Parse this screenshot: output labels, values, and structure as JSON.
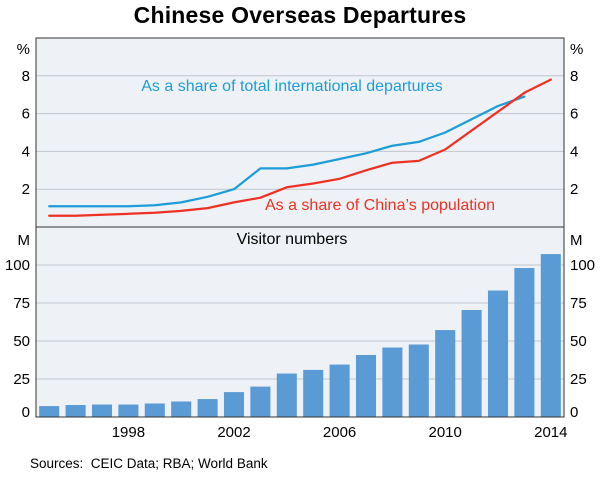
{
  "title": "Chinese Overseas Departures",
  "source_note": "Sources:  CEIC Data; RBA; World Bank",
  "colors": {
    "blue_line": "#1e9cd7",
    "red_line": "#ee3124",
    "bar": "#5b9bd5",
    "plot_bg": "#eef2f6",
    "grid": "#bfc6cd",
    "frame": "#333333"
  },
  "chart_data": [
    {
      "type": "line",
      "panel": "top",
      "unit_label": "%",
      "ylim": [
        0,
        10
      ],
      "yticks": [
        2,
        4,
        6,
        8
      ],
      "grid": true,
      "series": [
        {
          "name": "As a share of total international departures",
          "color": "#1e9cd7",
          "x": [
            1995,
            1996,
            1997,
            1998,
            1999,
            2000,
            2001,
            2002,
            2003,
            2004,
            2005,
            2006,
            2007,
            2008,
            2009,
            2010,
            2011,
            2012,
            2013
          ],
          "values": [
            1.1,
            1.1,
            1.1,
            1.1,
            1.15,
            1.3,
            1.6,
            2.0,
            3.1,
            3.1,
            3.3,
            3.6,
            3.9,
            4.3,
            4.5,
            5.0,
            5.7,
            6.4,
            6.9
          ]
        },
        {
          "name": "As a share of China’s population",
          "color": "#ee3124",
          "x": [
            1995,
            1996,
            1997,
            1998,
            1999,
            2000,
            2001,
            2002,
            2003,
            2004,
            2005,
            2006,
            2007,
            2008,
            2009,
            2010,
            2011,
            2012,
            2013,
            2014
          ],
          "values": [
            0.6,
            0.6,
            0.65,
            0.7,
            0.75,
            0.85,
            1.0,
            1.3,
            1.55,
            2.1,
            2.3,
            2.55,
            3.0,
            3.4,
            3.5,
            4.1,
            5.1,
            6.1,
            7.1,
            7.8
          ]
        }
      ]
    },
    {
      "type": "bar",
      "panel": "bottom",
      "title": "Visitor numbers",
      "unit_label": "M",
      "ylim": [
        0,
        125
      ],
      "yticks": [
        0,
        25,
        50,
        75,
        100
      ],
      "grid": true,
      "categories": [
        1995,
        1996,
        1997,
        1998,
        1999,
        2000,
        2001,
        2002,
        2003,
        2004,
        2005,
        2006,
        2007,
        2008,
        2009,
        2010,
        2011,
        2012,
        2013,
        2014
      ],
      "values": [
        7.2,
        7.9,
        8.2,
        8.2,
        8.9,
        10.2,
        11.8,
        16.4,
        20.0,
        28.6,
        31.0,
        34.5,
        40.8,
        45.7,
        47.7,
        57.2,
        70.4,
        83.2,
        98.0,
        107.2
      ],
      "xticks": [
        1998,
        2002,
        2006,
        2010,
        2014
      ]
    }
  ]
}
